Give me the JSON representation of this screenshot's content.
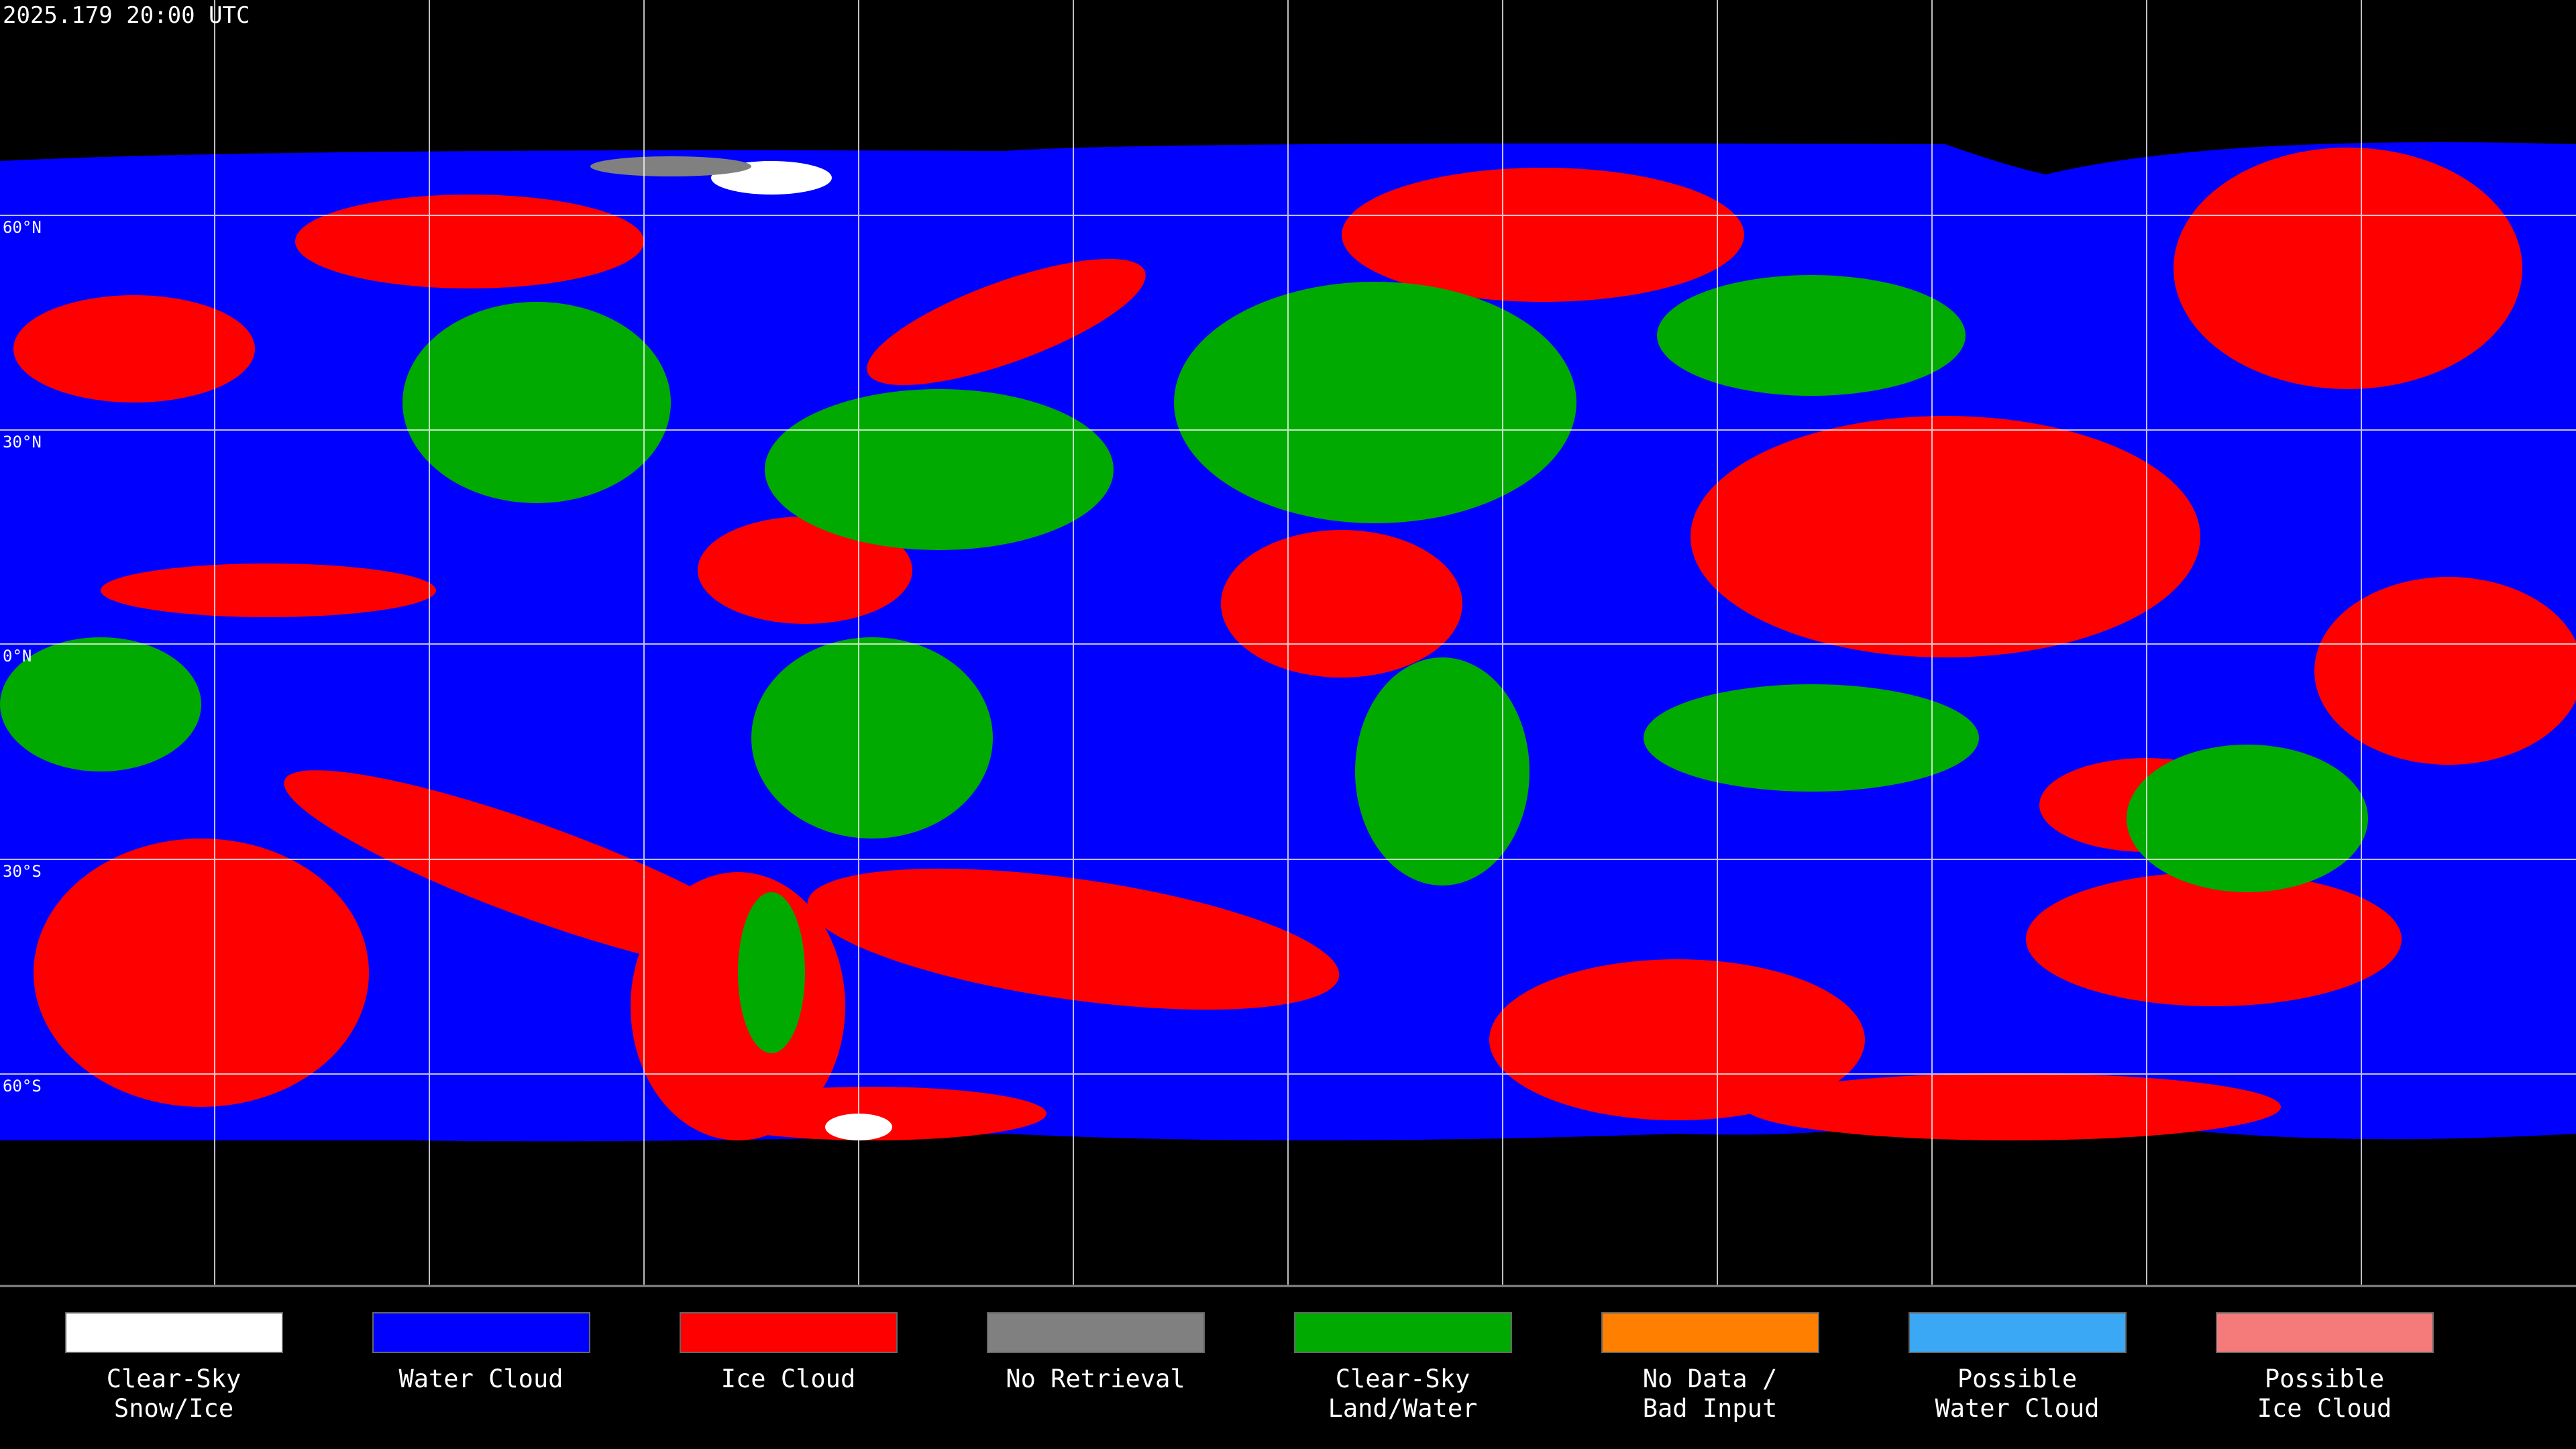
{
  "header": {
    "timestamp": "2025.179 20:00 UTC"
  },
  "map": {
    "latitude_labels": [
      "60°N",
      "30°N",
      "0°N",
      "30°S",
      "60°S"
    ]
  },
  "legend": [
    {
      "label": [
        "Clear-Sky",
        "Snow/Ice"
      ],
      "color": "#ffffff"
    },
    {
      "label": [
        "Water Cloud"
      ],
      "color": "#0000ff"
    },
    {
      "label": [
        "Ice Cloud"
      ],
      "color": "#ff0000"
    },
    {
      "label": [
        "No Retrieval"
      ],
      "color": "#808080"
    },
    {
      "label": [
        "Clear-Sky",
        "Land/Water"
      ],
      "color": "#00aa00"
    },
    {
      "label": [
        "No Data /",
        "Bad Input"
      ],
      "color": "#ff8000"
    },
    {
      "label": [
        "Possible",
        "Water Cloud"
      ],
      "color": "#3ba8f5"
    },
    {
      "label": [
        "Possible",
        "Ice Cloud"
      ],
      "color": "#f57a7a"
    }
  ]
}
